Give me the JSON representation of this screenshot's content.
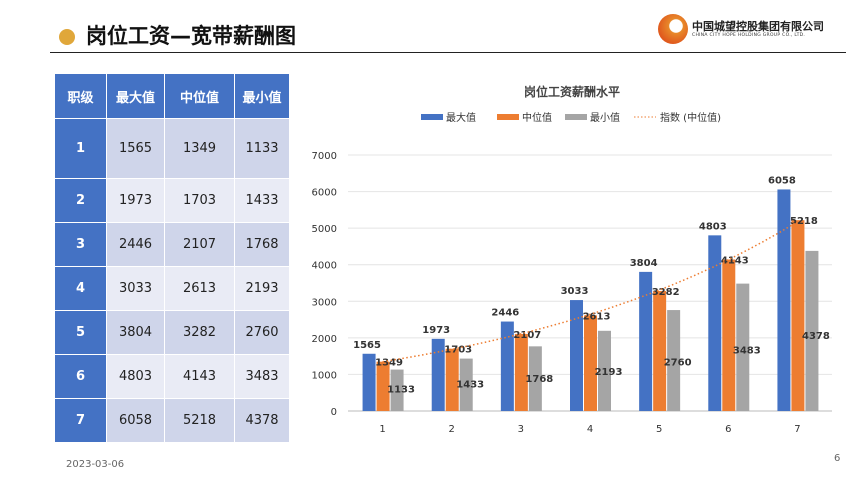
{
  "header": {
    "title": "岗位工资—宽带薪酬图",
    "logo_cn": "中国城望控股集团有限公司",
    "logo_en": "CHINA CITY HOPE HOLDING GROUP CO., LTD."
  },
  "table": {
    "headers": [
      "职级",
      "最大值",
      "中位值",
      "最小值"
    ],
    "rows": [
      [
        "1",
        "1565",
        "1349",
        "1133"
      ],
      [
        "2",
        "1973",
        "1703",
        "1433"
      ],
      [
        "3",
        "2446",
        "2107",
        "1768"
      ],
      [
        "4",
        "3033",
        "2613",
        "2193"
      ],
      [
        "5",
        "3804",
        "3282",
        "2760"
      ],
      [
        "6",
        "4803",
        "4143",
        "3483"
      ],
      [
        "7",
        "6058",
        "5218",
        "4378"
      ]
    ]
  },
  "footer": {
    "date": "2023-03-06",
    "page": "6"
  },
  "chart_data": {
    "type": "bar",
    "title": "岗位工资薪酬水平",
    "categories": [
      "1",
      "2",
      "3",
      "4",
      "5",
      "6",
      "7"
    ],
    "series": [
      {
        "name": "最大值",
        "color": "#4472c4",
        "values": [
          1565,
          1973,
          2446,
          3033,
          3804,
          4803,
          6058
        ]
      },
      {
        "name": "中位值",
        "color": "#ed7d31",
        "values": [
          1349,
          1703,
          2107,
          2613,
          3282,
          4143,
          5218
        ]
      },
      {
        "name": "最小值",
        "color": "#a5a5a5",
        "values": [
          1133,
          1433,
          1768,
          2193,
          2760,
          3483,
          4378
        ]
      }
    ],
    "trendline": {
      "name": "指数 (中位值)",
      "type": "exponential",
      "color": "#ed7d31"
    },
    "ylim": [
      0,
      7000
    ],
    "yticks": [
      0,
      1000,
      2000,
      3000,
      4000,
      5000,
      6000,
      7000
    ],
    "grid": true,
    "legend": "top"
  }
}
